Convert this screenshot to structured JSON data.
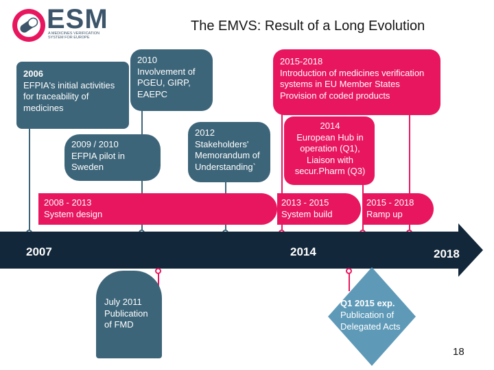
{
  "logo": {
    "wordmark": "ESM",
    "tagline": "A MEDICINES VERIFICATION SYSTEM FOR EUROPE",
    "icon": "pill-badge-icon",
    "colors": {
      "ring": "#e8165f",
      "badge": "#3c556a"
    }
  },
  "title": "The EMVS: Result of a Long Evolution",
  "timeline": {
    "year_start": "2007",
    "year_mid": "2014",
    "year_end": "2018"
  },
  "boxes": {
    "b2006": {
      "year": "2006",
      "text": "EFPIA's initial activities for traceability of medicines"
    },
    "b2010": {
      "year": "2010",
      "text": "Involvement of PGEU, GIRP, EAEPC"
    },
    "b2009": {
      "year": "2009 / 2010",
      "text": "EFPIA pilot in Sweden"
    },
    "b2012": {
      "year": "2012",
      "text": "Stakeholders' Memorandum of Understanding`"
    },
    "b2015_2018_top": {
      "year": "2015-2018",
      "line1": "Introduction of medicines verification systems in EU Member States",
      "line2": "Provision of coded products"
    },
    "b2014": {
      "year": "2014",
      "text": "European Hub in operation (Q1), Liaison with secur.Pharm (Q3)"
    },
    "p2008": {
      "year": "2008 - 2013",
      "text": "System design"
    },
    "p2013": {
      "year": "2013 - 2015",
      "text": "System build"
    },
    "p2015": {
      "year": "2015 - 2018",
      "text": "Ramp up"
    },
    "b2011": {
      "year": "July 2011",
      "text": "Publication of FMD"
    },
    "bq1": {
      "year": "Q1 2015 exp.",
      "text": "Publication of Delegated Acts"
    }
  },
  "colors": {
    "teal": "#3d6579",
    "pink": "#e8165f",
    "arrow": "#12273a",
    "diamond": "#5e9ab8"
  },
  "page_number": "18"
}
